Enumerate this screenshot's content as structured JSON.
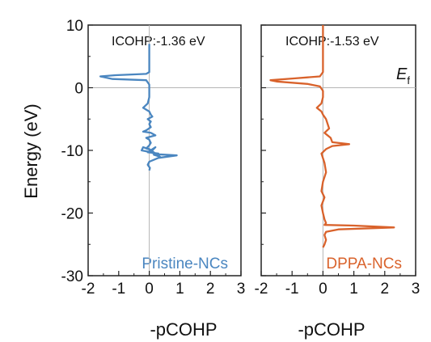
{
  "chart_data": [
    {
      "type": "line",
      "orientation": "vertical-profile",
      "title": "",
      "xlabel": "-pCOHP",
      "ylabel": "Energy (eV)",
      "xlim": [
        -2,
        3
      ],
      "ylim": [
        -30,
        10
      ],
      "xticks": [
        "-2",
        "-1",
        "0",
        "1",
        "2",
        "3"
      ],
      "yticks": [
        "10",
        "0",
        "-10",
        "-20",
        "-30"
      ],
      "annotation": "ICOHP:-1.36 eV",
      "legend_label": "Pristine-NCs",
      "legend_placement": "bottom-right",
      "color": "#4a86c0",
      "reference_lines": {
        "x": 0,
        "y": 0
      },
      "series": [
        {
          "x": [
            0,
            0,
            0,
            0,
            -0.1,
            -1.1,
            -1.6,
            -1.2,
            -0.1,
            0,
            0,
            0,
            -0.05,
            -0.2,
            -0.1,
            0,
            0.05,
            0.1,
            -0.05,
            0.05,
            0,
            0.05,
            -0.1,
            -0.2,
            0.05,
            0.2,
            -0.1,
            0,
            0.05,
            0,
            -0.1,
            0.1,
            0.2,
            -0.05,
            0.3,
            0.15,
            0.35,
            0,
            -0.2,
            -0.25,
            0.05,
            0.2,
            0.9,
            0.3,
            0,
            -0.05,
            0.02,
            0
          ],
          "y": [
            7,
            6,
            4,
            2.5,
            2.2,
            2.0,
            1.8,
            1.4,
            1.2,
            0.5,
            -0.5,
            -1.5,
            -2.5,
            -3.2,
            -3.5,
            -3.8,
            -4.3,
            -4.6,
            -5.0,
            -5.4,
            -5.8,
            -6.3,
            -6.8,
            -7.0,
            -7.2,
            -7.6,
            -8.0,
            -8.3,
            -8.8,
            -9.2,
            -9.7,
            -10.0,
            -9.5,
            -10.3,
            -10.5,
            -10.7,
            -11.0,
            -9.8,
            -9.5,
            -10.0,
            -10.3,
            -10.6,
            -10.8,
            -11.2,
            -11.8,
            -12.3,
            -12.8,
            -13.2
          ]
        }
      ]
    },
    {
      "type": "line",
      "orientation": "vertical-profile",
      "title": "",
      "xlabel": "-pCOHP",
      "ylabel": "",
      "xlim": [
        -2,
        3
      ],
      "ylim": [
        -30,
        10
      ],
      "xticks": [
        "-2",
        "-1",
        "0",
        "1",
        "2",
        "3"
      ],
      "yticks": [],
      "annotation": "ICOHP:-1.53 eV",
      "fermi_label": "E",
      "fermi_subscript": "f",
      "legend_label": "DPPA-NCs",
      "legend_placement": "bottom-right",
      "color": "#d9622b",
      "reference_lines": {
        "x": 0,
        "y": 0
      },
      "series": [
        {
          "x": [
            0,
            0,
            0,
            0,
            -0.1,
            -0.9,
            -1.7,
            -1.5,
            -0.5,
            -0.1,
            0,
            0,
            -0.05,
            -0.2,
            -0.05,
            0,
            0.1,
            0.2,
            0.05,
            0.25,
            0.3,
            0.85,
            0.3,
            0.1,
            -0.05,
            0.05,
            0.1,
            0,
            -0.05,
            0.05,
            -0.05,
            0,
            0.05,
            0.1,
            0.05,
            1.0,
            2.3,
            0.5,
            0.1,
            0.05,
            0.1,
            0.05,
            0
          ],
          "y": [
            10,
            6,
            4,
            2.5,
            1.8,
            1.5,
            1.2,
            1.0,
            0.6,
            0.2,
            -0.5,
            -1.5,
            -2.5,
            -3.2,
            -3.8,
            -4.3,
            -5.0,
            -6.5,
            -7.2,
            -8.0,
            -8.7,
            -9.0,
            -9.3,
            -9.8,
            -10.5,
            -12.0,
            -13.5,
            -15.0,
            -16.5,
            -17.5,
            -18.8,
            -20.0,
            -21.0,
            -21.6,
            -21.9,
            -22.0,
            -22.3,
            -22.6,
            -23.0,
            -23.5,
            -24.3,
            -25.0,
            -25.5
          ]
        }
      ]
    }
  ]
}
